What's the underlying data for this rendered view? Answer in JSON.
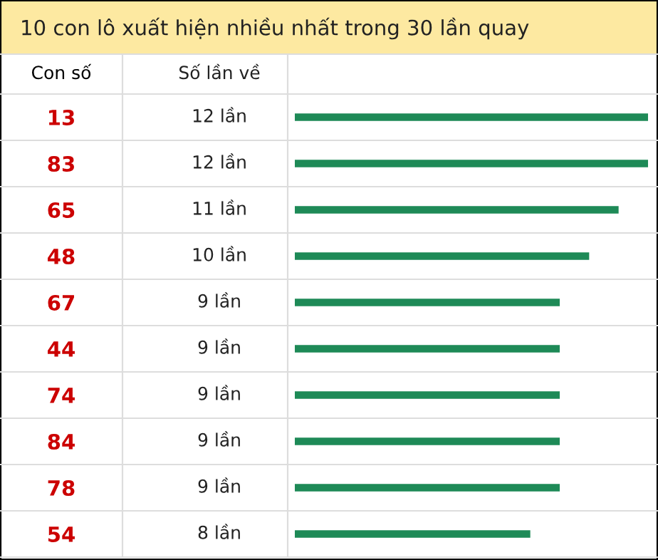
{
  "chart_data": {
    "type": "bar",
    "orientation": "horizontal",
    "title": "10 con lô xuất hiện nhiều nhất trong 30 lần quay",
    "ylabel": "Con số",
    "annotations": [
      "Số lần về"
    ],
    "categories": [
      "13",
      "83",
      "65",
      "48",
      "67",
      "44",
      "74",
      "84",
      "78",
      "54"
    ],
    "values": [
      12,
      12,
      11,
      10,
      9,
      9,
      9,
      9,
      9,
      8
    ],
    "value_labels": [
      "12 lần",
      "12 lần",
      "11 lần",
      "10 lần",
      "9 lần",
      "9 lần",
      "9 lần",
      "9 lần",
      "9 lần",
      "8 lần"
    ],
    "color": "#1e8a57",
    "grid": false,
    "legend": false
  }
}
